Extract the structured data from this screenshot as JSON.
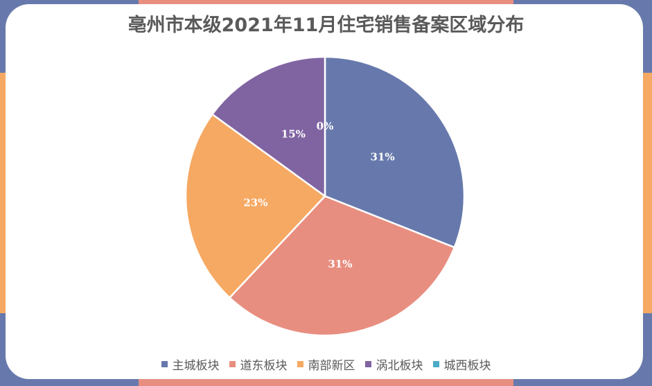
{
  "chart_data": {
    "type": "pie",
    "title": "亳州市本级2021年11月住宅销售备案区域分布",
    "legend_position": "bottom",
    "slices": [
      {
        "name": "主城板块",
        "value": 31,
        "label": "31%",
        "color": "#6779AC"
      },
      {
        "name": "道东板块",
        "value": 31,
        "label": "31%",
        "color": "#E88E80"
      },
      {
        "name": "南部新区",
        "value": 23,
        "label": "23%",
        "color": "#F6A963"
      },
      {
        "name": "涡北板块",
        "value": 15,
        "label": "15%",
        "color": "#8064A2"
      },
      {
        "name": "城西板块",
        "value": 0,
        "label": "0%",
        "color": "#4BACC6"
      }
    ]
  },
  "frame_colors": {
    "blue": "#6779AC",
    "salmon": "#E88E80",
    "orange": "#F6A963"
  }
}
